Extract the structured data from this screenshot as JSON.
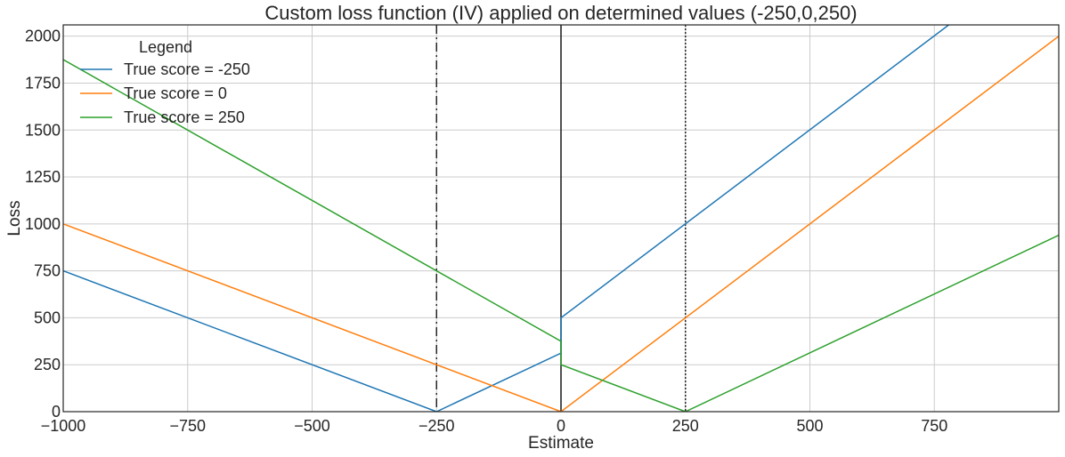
{
  "chart_data": {
    "type": "line",
    "title": "Custom loss function (IV) applied on determined values (-250,0,250)",
    "xlabel": "Estimate",
    "ylabel": "Loss",
    "xlim": [
      -1000,
      1000
    ],
    "ylim": [
      0,
      2060
    ],
    "xticks": [
      -1000,
      -750,
      -500,
      -250,
      0,
      250,
      500,
      750
    ],
    "xtick_labels": [
      "−1000",
      "−750",
      "−500",
      "−250",
      "0",
      "250",
      "500",
      "750"
    ],
    "yticks": [
      0,
      250,
      500,
      750,
      1000,
      1250,
      1500,
      1750,
      2000
    ],
    "ytick_labels": [
      "0",
      "250",
      "500",
      "750",
      "1000",
      "1250",
      "1500",
      "1750",
      "2000"
    ],
    "grid": true,
    "legend": {
      "title": "Legend",
      "position": "top-left"
    },
    "series": [
      {
        "name": "True score = -250",
        "color": "#1f77b4",
        "points": [
          [
            -1000,
            750
          ],
          [
            -250,
            0
          ],
          [
            0,
            312
          ],
          [
            0,
            500
          ],
          [
            779,
            2060
          ]
        ]
      },
      {
        "name": "True score = 0",
        "color": "#ff7f0e",
        "points": [
          [
            -1000,
            1000
          ],
          [
            0,
            0
          ],
          [
            1000,
            2000
          ]
        ]
      },
      {
        "name": "True score = 250",
        "color": "#2ca02c",
        "points": [
          [
            -1000,
            1875
          ],
          [
            0,
            375
          ],
          [
            0,
            250
          ],
          [
            250,
            0
          ],
          [
            1000,
            940
          ]
        ]
      }
    ],
    "vlines": [
      {
        "x": -250,
        "style": "dashdot",
        "color": "#262626"
      },
      {
        "x": 0,
        "style": "solid",
        "color": "#262626"
      },
      {
        "x": 250,
        "style": "dotted",
        "color": "#262626"
      }
    ]
  }
}
